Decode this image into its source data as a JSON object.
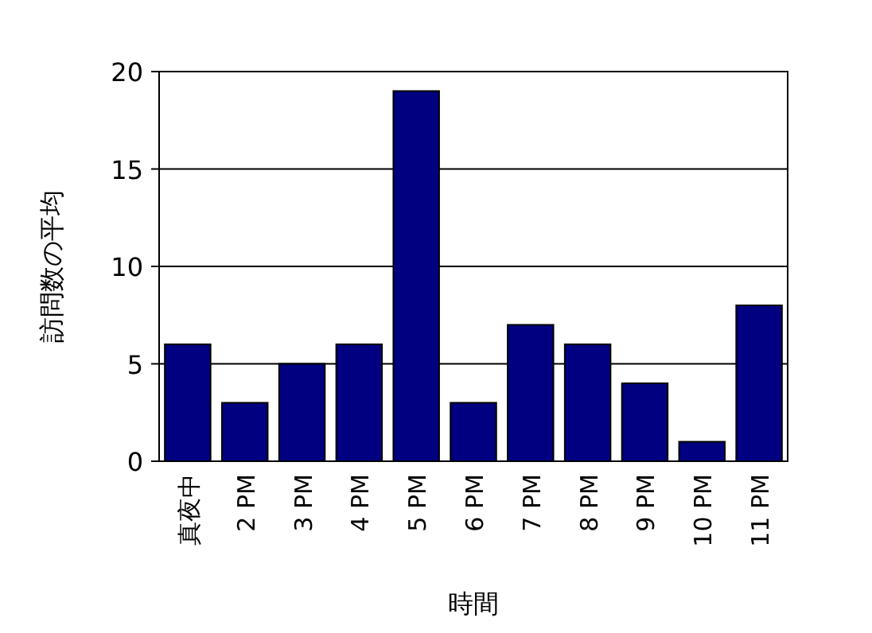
{
  "chart_data": {
    "type": "bar",
    "xlabel": "時間",
    "ylabel": "訪問数の平均",
    "categories": [
      "真夜中",
      "2 PM",
      "3 PM",
      "4 PM",
      "5 PM",
      "6 PM",
      "7 PM",
      "8 PM",
      "9 PM",
      "10 PM",
      "11 PM"
    ],
    "values": [
      6,
      3,
      5,
      6,
      19,
      3,
      7,
      6,
      4,
      1,
      8
    ],
    "color": "#000080",
    "ylim": [
      0,
      20
    ],
    "yticks": [
      0,
      5,
      10,
      15,
      20
    ],
    "grid": "y"
  }
}
